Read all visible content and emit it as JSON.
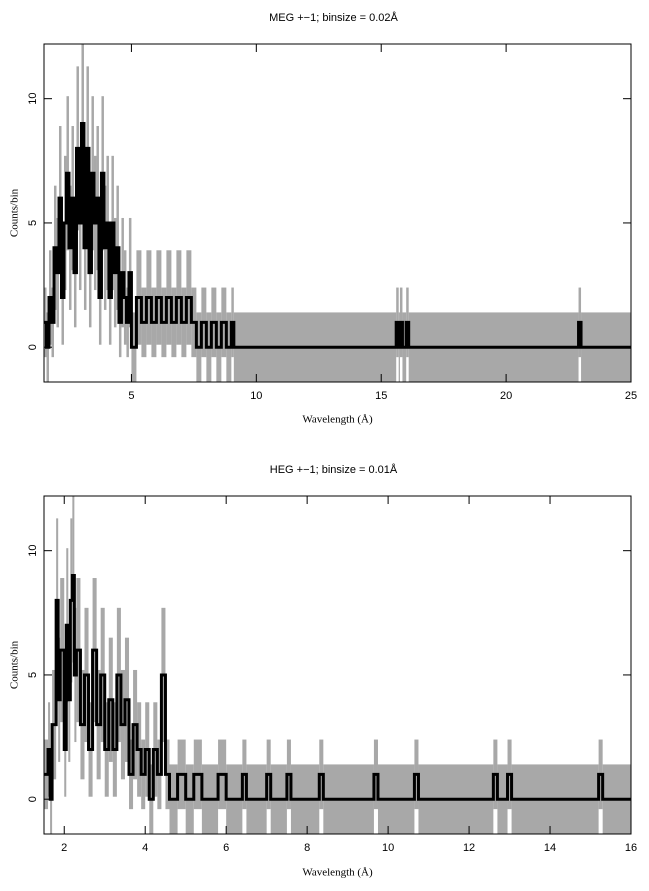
{
  "chart_data": [
    {
      "type": "histogram-step",
      "title": "MEG +−1; binsize = 0.02Å",
      "x_label": "Wavelength (Å)",
      "y_label": "Counts/bin",
      "xlim": [
        1.5,
        25
      ],
      "ylim": [
        -1.4,
        12.2
      ],
      "xticks": [
        5,
        10,
        15,
        20,
        25
      ],
      "yticks": [
        0,
        5,
        10
      ],
      "line_color": "#000000",
      "error_color": "#a8a8a8",
      "x": [
        1.5,
        1.6,
        1.7,
        1.8,
        1.9,
        2.0,
        2.1,
        2.2,
        2.3,
        2.4,
        2.5,
        2.6,
        2.7,
        2.8,
        2.9,
        3.0,
        3.1,
        3.2,
        3.3,
        3.4,
        3.5,
        3.6,
        3.7,
        3.8,
        3.9,
        4.0,
        4.1,
        4.2,
        4.3,
        4.4,
        4.5,
        4.6,
        4.7,
        4.8,
        4.9,
        5.0,
        5.2,
        5.4,
        5.6,
        5.8,
        6.0,
        6.2,
        6.4,
        6.6,
        6.8,
        7.0,
        7.2,
        7.4,
        7.6,
        7.8,
        8.0,
        8.2,
        8.4,
        8.6,
        8.8,
        9.0,
        9.1,
        15.6,
        15.7,
        15.75,
        15.85,
        16.0,
        16.1,
        22.9,
        23.0
      ],
      "values": [
        1,
        0,
        2,
        1,
        4,
        3,
        6,
        2,
        5,
        7,
        4,
        6,
        3,
        8,
        5,
        9,
        4,
        8,
        3,
        7,
        5,
        6,
        2,
        7,
        4,
        5,
        2,
        5,
        3,
        4,
        1,
        3,
        2,
        1,
        3,
        0,
        2,
        1,
        2,
        1,
        2,
        1,
        2,
        1,
        2,
        1,
        2,
        1,
        0,
        1,
        0,
        1,
        0,
        1,
        0,
        1,
        0,
        1,
        0,
        1,
        0,
        1,
        0,
        1,
        0
      ],
      "errors": [
        1.4,
        1.4,
        1.9,
        1.4,
        2.5,
        2.2,
        2.9,
        1.9,
        2.7,
        3.1,
        2.5,
        2.9,
        2.2,
        3.3,
        2.7,
        3.5,
        2.5,
        3.3,
        2.2,
        3.1,
        2.7,
        2.9,
        1.9,
        3.1,
        2.5,
        2.7,
        1.9,
        2.7,
        2.2,
        2.5,
        1.4,
        2.2,
        1.9,
        1.4,
        2.2,
        1.4,
        1.9,
        1.4,
        1.9,
        1.4,
        1.9,
        1.4,
        1.9,
        1.4,
        1.9,
        1.4,
        1.9,
        1.4,
        1.4,
        1.4,
        1.4,
        1.4,
        1.4,
        1.4,
        1.4,
        1.4,
        1.4,
        1.4,
        1.4,
        1.4,
        1.4,
        1.4,
        1.4,
        1.4,
        1.4
      ]
    },
    {
      "type": "histogram-step",
      "title": "HEG +−1; binsize = 0.01Å",
      "x_label": "Wavelength (Å)",
      "y_label": "Counts/bin",
      "xlim": [
        1.5,
        16
      ],
      "ylim": [
        -1.4,
        12.2
      ],
      "xticks": [
        2,
        4,
        6,
        8,
        10,
        12,
        14,
        16
      ],
      "yticks": [
        0,
        5,
        10
      ],
      "line_color": "#000000",
      "error_color": "#a8a8a8",
      "x": [
        1.5,
        1.6,
        1.65,
        1.7,
        1.8,
        1.85,
        1.9,
        2.0,
        2.05,
        2.1,
        2.15,
        2.2,
        2.25,
        2.3,
        2.4,
        2.5,
        2.6,
        2.7,
        2.8,
        2.9,
        3.0,
        3.1,
        3.2,
        3.3,
        3.4,
        3.5,
        3.6,
        3.7,
        3.8,
        3.9,
        4.0,
        4.1,
        4.2,
        4.3,
        4.4,
        4.5,
        4.6,
        4.8,
        5.0,
        5.2,
        5.4,
        5.8,
        6.0,
        6.4,
        6.5,
        7.0,
        7.1,
        7.5,
        7.6,
        8.3,
        8.4,
        9.65,
        9.75,
        10.65,
        10.75,
        12.6,
        12.7,
        12.95,
        13.05,
        15.2,
        15.3
      ],
      "values": [
        1,
        2,
        0,
        3,
        8,
        4,
        6,
        2,
        7,
        4,
        8,
        9,
        5,
        6,
        3,
        5,
        2,
        6,
        3,
        5,
        2,
        4,
        2,
        5,
        3,
        4,
        1,
        3,
        2,
        1,
        2,
        0,
        2,
        1,
        5,
        1,
        0,
        1,
        0,
        1,
        0,
        1,
        0,
        1,
        0,
        1,
        0,
        1,
        0,
        1,
        0,
        1,
        0,
        1,
        0,
        1,
        0,
        1,
        0,
        1,
        0
      ],
      "errors": [
        1.4,
        1.9,
        1.4,
        2.2,
        3.3,
        2.5,
        2.9,
        1.9,
        3.1,
        2.5,
        3.3,
        3.5,
        2.7,
        2.9,
        2.2,
        2.7,
        1.9,
        2.9,
        2.2,
        2.7,
        1.9,
        2.5,
        1.9,
        2.7,
        2.2,
        2.5,
        1.4,
        2.2,
        1.9,
        1.4,
        1.9,
        1.4,
        1.9,
        1.4,
        2.7,
        1.4,
        1.4,
        1.4,
        1.4,
        1.4,
        1.4,
        1.4,
        1.4,
        1.4,
        1.4,
        1.4,
        1.4,
        1.4,
        1.4,
        1.4,
        1.4,
        1.4,
        1.4,
        1.4,
        1.4,
        1.4,
        1.4,
        1.4,
        1.4,
        1.4,
        1.4
      ]
    }
  ]
}
